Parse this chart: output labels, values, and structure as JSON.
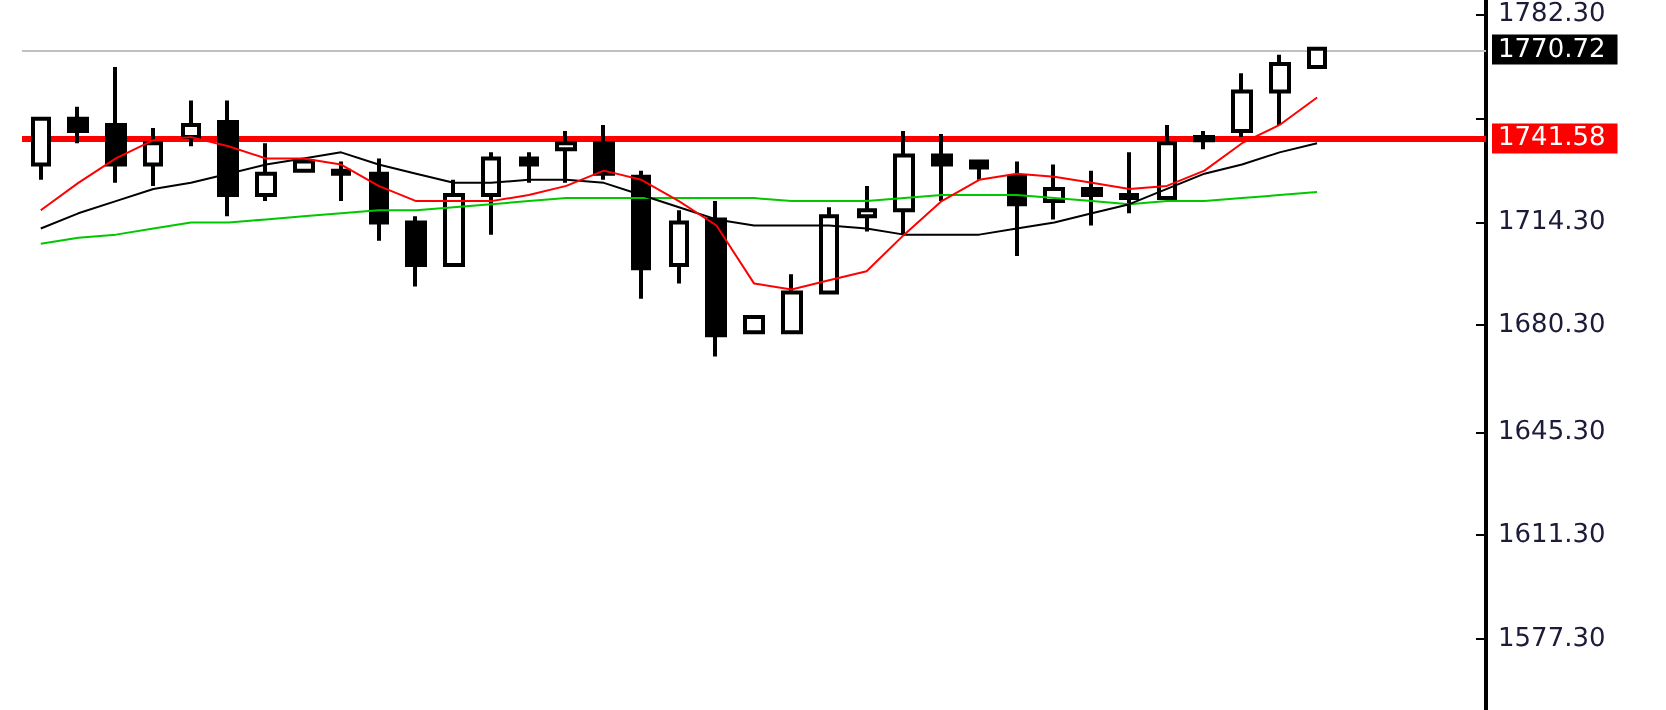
{
  "chart_data": {
    "type": "candlestick",
    "categories": [
      null,
      null,
      null,
      null,
      null,
      null,
      null,
      null,
      null,
      null,
      null,
      null,
      null,
      null,
      null,
      null,
      null,
      null,
      null,
      null,
      null,
      null,
      null,
      null,
      null,
      null,
      null,
      null,
      null,
      null,
      null,
      null,
      null,
      null,
      null,
      null,
      null,
      null,
      null
    ],
    "ohlc": [
      [
        1733,
        1748,
        1728,
        1748
      ],
      [
        1748,
        1752,
        1740,
        1744
      ],
      [
        1746,
        1765,
        1727,
        1733
      ],
      [
        1733,
        1745,
        1726,
        1740
      ],
      [
        1742,
        1754,
        1739,
        1746
      ],
      [
        1747,
        1754,
        1716,
        1723
      ],
      [
        1723,
        1740,
        1721,
        1730
      ],
      [
        1731,
        1735,
        1731,
        1734
      ],
      [
        1731,
        1734,
        1721,
        1730
      ],
      [
        1730,
        1735,
        1708,
        1714
      ],
      [
        1714,
        1716,
        1693,
        1700
      ],
      [
        1700,
        1728,
        1700,
        1723
      ],
      [
        1723,
        1737,
        1710,
        1735
      ],
      [
        1735,
        1737,
        1727,
        1733
      ],
      [
        1738,
        1744,
        1727,
        1740
      ],
      [
        1740,
        1746,
        1728,
        1730
      ],
      [
        1729,
        1731,
        1689,
        1699
      ],
      [
        1700,
        1718,
        1694,
        1714
      ],
      [
        1715,
        1721,
        1670,
        1677
      ],
      [
        1678,
        1683,
        1678,
        1683
      ],
      [
        1678,
        1697,
        1678,
        1691
      ],
      [
        1691,
        1719,
        1691,
        1716
      ],
      [
        1716,
        1726,
        1711,
        1718
      ],
      [
        1718,
        1744,
        1710,
        1736
      ],
      [
        1736,
        1743,
        1721,
        1733
      ],
      [
        1734,
        1734,
        1728,
        1732
      ],
      [
        1729,
        1734,
        1703,
        1720
      ],
      [
        1721,
        1733,
        1715,
        1725
      ],
      [
        1725,
        1731,
        1713,
        1723
      ],
      [
        1722,
        1737,
        1717,
        1723
      ],
      [
        1722,
        1746,
        1722,
        1740
      ],
      [
        1741,
        1744,
        1738,
        1742
      ],
      [
        1744,
        1763,
        1742,
        1757
      ],
      [
        1757,
        1769,
        1746,
        1766
      ],
      [
        1765,
        1771,
        1765,
        1771
      ],
      null,
      null,
      null,
      null
    ],
    "series": [
      {
        "type": "line",
        "color": "#00c800",
        "values": [
          1707,
          1709,
          1710,
          1712,
          1714,
          1714,
          1715,
          1716,
          1717,
          1718,
          1718,
          1719,
          1720,
          1721,
          1722,
          1722,
          1722,
          1722,
          1722,
          1722,
          1721,
          1721,
          1721,
          1722,
          1723,
          1723,
          1723,
          1722,
          1721,
          1720,
          1721,
          1721,
          1722,
          1723,
          1724,
          null,
          null,
          null,
          null
        ]
      },
      {
        "type": "line",
        "color": "#000000",
        "values": [
          1712,
          1717,
          1721,
          1725,
          1727,
          1730,
          1733,
          1735,
          1737,
          1733,
          1730,
          1727,
          1727,
          1728,
          1728,
          1727,
          1723,
          1719,
          1715,
          1713,
          1713,
          1713,
          1712,
          1710,
          1710,
          1710,
          1712,
          1714,
          1717,
          1720,
          1725,
          1730,
          1733,
          1737,
          1740,
          null,
          null,
          null,
          null
        ]
      },
      {
        "type": "line",
        "color": "#ff0000",
        "values": [
          1718,
          1727,
          1735,
          1741,
          1742,
          1739,
          1735,
          1735,
          1733,
          1726,
          1721,
          1721,
          1721,
          1723,
          1726,
          1731,
          1728,
          1721,
          1713,
          1694,
          1692,
          1695,
          1698,
          1710,
          1721,
          1728,
          1730,
          1729,
          1727,
          1725,
          1726,
          1731,
          1740,
          1746,
          1755,
          null,
          null,
          null,
          null
        ]
      }
    ],
    "ylim": [
      1554,
      1787
    ],
    "yticks": [
      {
        "value": 1577.3,
        "label": "1577.30"
      },
      {
        "value": 1611.3,
        "label": "1611.30"
      },
      {
        "value": 1645.3,
        "label": "1645.30"
      },
      {
        "value": 1680.3,
        "label": "1680.30"
      },
      {
        "value": 1714.3,
        "label": "1714.30"
      },
      {
        "value": 1748.3,
        "label": null
      },
      {
        "value": 1782.3,
        "label": "1782.30"
      }
    ],
    "ref_lines": [
      {
        "axis": "y",
        "value": 1770.72,
        "label": "1770.72",
        "color": "#c0c0c0"
      },
      {
        "axis": "y",
        "value": 1741.58,
        "label": "1741.58",
        "color": "#ff0000"
      }
    ],
    "tick_labels": "y",
    "grid": false,
    "marker": "none",
    "line_style": "solid"
  }
}
